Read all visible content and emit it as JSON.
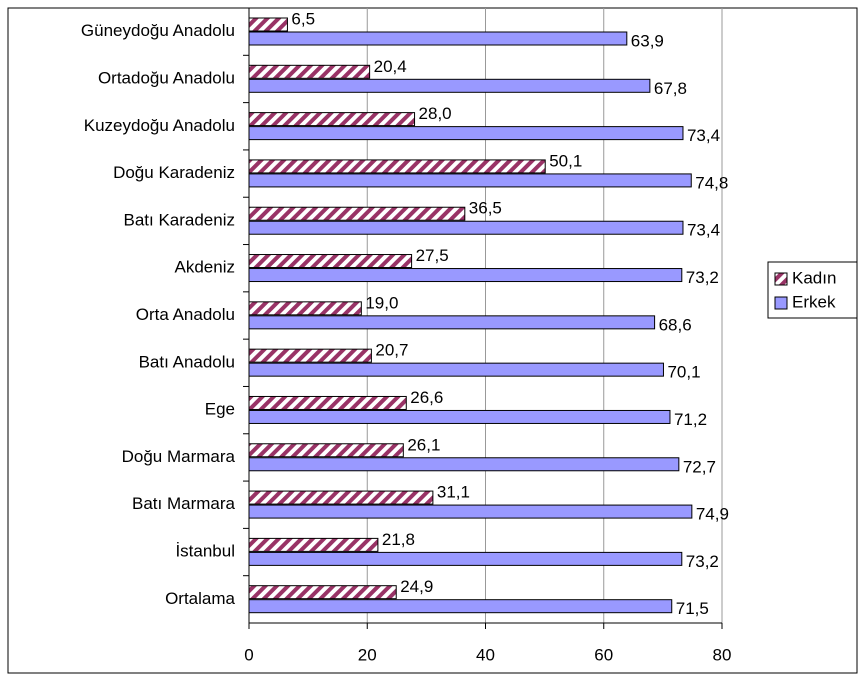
{
  "chart_data": {
    "type": "bar",
    "orientation": "horizontal",
    "categories": [
      "Güneydoğu Anadolu",
      "Ortadoğu Anadolu",
      "Kuzeydoğu Anadolu",
      "Doğu Karadeniz",
      "Batı Karadeniz",
      "Akdeniz",
      "Orta Anadolu",
      "Batı Anadolu",
      "Ege",
      "Doğu Marmara",
      "Batı Marmara",
      "İstanbul",
      "Ortalama"
    ],
    "series": [
      {
        "name": "Kadın",
        "color": "#993366",
        "pattern": "hatch",
        "values": [
          6.5,
          20.4,
          28.0,
          50.1,
          36.5,
          27.5,
          19.0,
          20.7,
          26.6,
          26.1,
          31.1,
          21.8,
          24.9
        ],
        "value_labels": [
          "6,5",
          "20,4",
          "28,0",
          "50,1",
          "36,5",
          "27,5",
          "19,0",
          "20,7",
          "26,6",
          "26,1",
          "31,1",
          "21,8",
          "24,9"
        ]
      },
      {
        "name": "Erkek",
        "color": "#9999ff",
        "values": [
          63.9,
          67.8,
          73.4,
          74.8,
          73.4,
          73.2,
          68.6,
          70.1,
          71.2,
          72.7,
          74.9,
          73.2,
          71.5
        ],
        "value_labels": [
          "63,9",
          "67,8",
          "73,4",
          "74,8",
          "73,4",
          "73,2",
          "68,6",
          "70,1",
          "71,2",
          "72,7",
          "74,9",
          "73,2",
          "71,5"
        ]
      }
    ],
    "xlim": [
      0,
      80
    ],
    "xticks": [
      0,
      20,
      40,
      60,
      80
    ],
    "grid": true,
    "legend": "right"
  }
}
